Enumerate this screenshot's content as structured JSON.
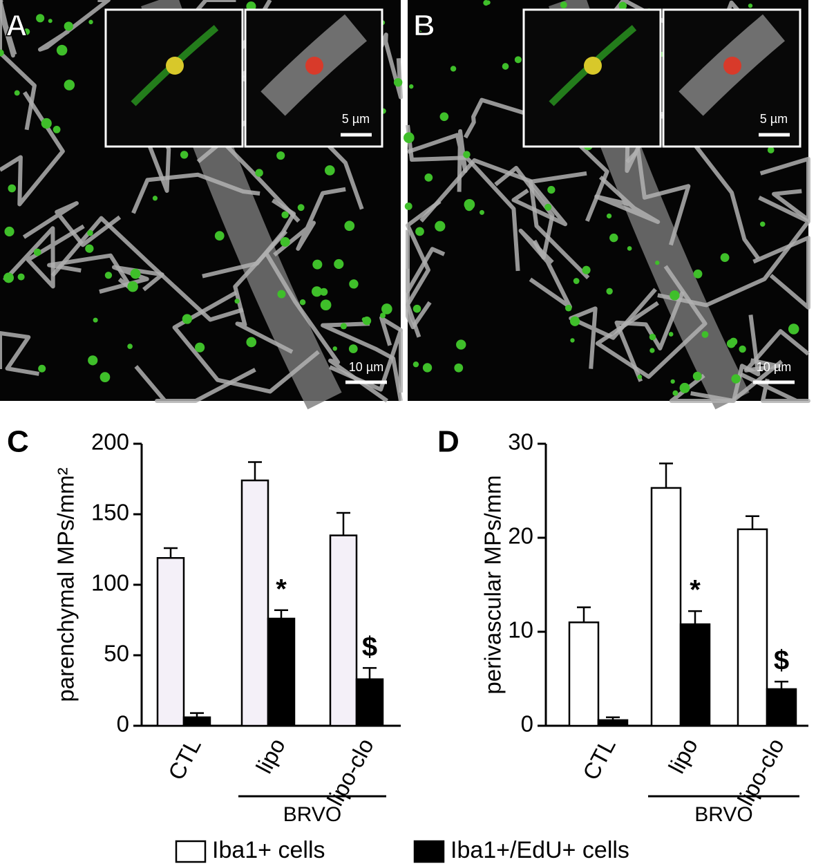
{
  "panels": [
    {
      "label": "A",
      "inset_scale": "5 µm",
      "scale": "10 µm"
    },
    {
      "label": "B",
      "inset_scale": "5 µm",
      "scale": "10 µm"
    }
  ],
  "chart_data": [
    {
      "type": "bar",
      "panel_label": "C",
      "y_label": "parenchymal MPs/mm²",
      "categories": [
        "CTL",
        "lipo",
        "lipo-clo"
      ],
      "group_label": "BRVO",
      "series": [
        {
          "name": "Iba1+ cells",
          "color": "#f4f0f8",
          "values": [
            119,
            174,
            135
          ],
          "errors": [
            7,
            13,
            16
          ]
        },
        {
          "name": "Iba1+/EdU+ cells",
          "color": "#000000",
          "values": [
            6,
            76,
            33
          ],
          "errors": [
            3,
            6,
            8
          ],
          "annotations": [
            null,
            "*",
            "$"
          ]
        }
      ],
      "ylim": [
        0,
        200
      ],
      "yticks": [
        0,
        50,
        100,
        150,
        200
      ]
    },
    {
      "type": "bar",
      "panel_label": "D",
      "y_label": "perivascular MPs/mm",
      "categories": [
        "CTL",
        "lipo",
        "lipo-clo"
      ],
      "group_label": "BRVO",
      "series": [
        {
          "name": "Iba1+ cells",
          "color": "#ffffff",
          "values": [
            11,
            25.3,
            20.9
          ],
          "errors": [
            1.6,
            2.6,
            1.4
          ]
        },
        {
          "name": "Iba1+/EdU+ cells",
          "color": "#000000",
          "values": [
            0.6,
            10.8,
            3.9
          ],
          "errors": [
            0.3,
            1.4,
            0.8
          ],
          "annotations": [
            null,
            "*",
            "$"
          ]
        }
      ],
      "ylim": [
        0,
        30
      ],
      "yticks": [
        0,
        10,
        20,
        30
      ]
    }
  ]
}
